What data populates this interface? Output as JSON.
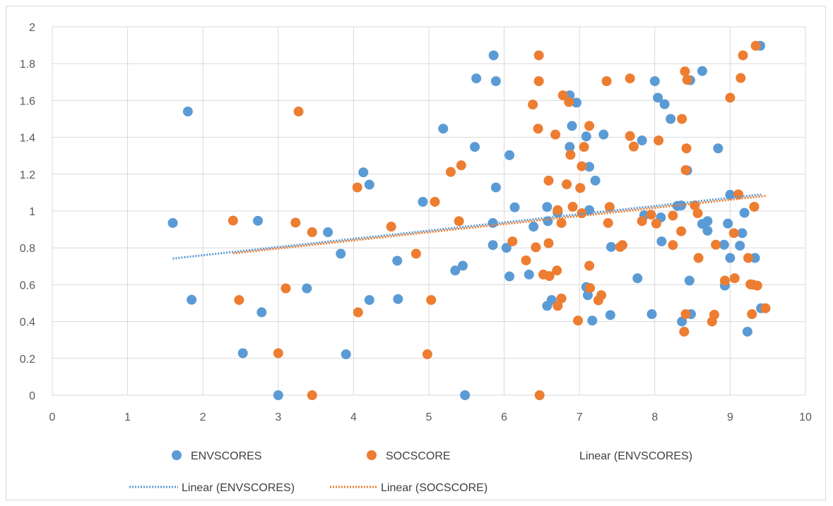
{
  "chart_data": {
    "type": "scatter",
    "title": "",
    "xlabel": "",
    "ylabel": "",
    "xlim": [
      0,
      10
    ],
    "ylim": [
      0,
      2
    ],
    "x_ticks": [
      "0",
      "1",
      "2",
      "3",
      "4",
      "5",
      "6",
      "7",
      "8",
      "9",
      "10"
    ],
    "y_ticks": [
      "0",
      "0.2",
      "0.4",
      "0.6",
      "0.8",
      "1",
      "1.2",
      "1.4",
      "1.6",
      "1.8",
      "2"
    ],
    "grid": true,
    "legend_position": "bottom",
    "series": [
      {
        "name": "ENVSCORES",
        "color": "#5b9bd5",
        "points": [
          [
            1.6,
            0.935
          ],
          [
            1.8,
            1.54
          ],
          [
            1.85,
            0.518
          ],
          [
            2.53,
            0.228
          ],
          [
            2.73,
            0.947
          ],
          [
            2.78,
            0.45
          ],
          [
            3.0,
            0.0
          ],
          [
            3.38,
            0.58
          ],
          [
            3.66,
            0.885
          ],
          [
            3.83,
            0.768
          ],
          [
            3.9,
            0.222
          ],
          [
            4.13,
            1.21
          ],
          [
            4.21,
            1.143
          ],
          [
            4.21,
            0.517
          ],
          [
            4.58,
            0.73
          ],
          [
            4.59,
            0.522
          ],
          [
            4.92,
            1.05
          ],
          [
            5.19,
            1.447
          ],
          [
            5.35,
            0.677
          ],
          [
            5.45,
            0.703
          ],
          [
            5.48,
            0.0
          ],
          [
            5.61,
            1.348
          ],
          [
            5.63,
            1.72
          ],
          [
            5.85,
            0.815
          ],
          [
            5.85,
            0.935
          ],
          [
            5.86,
            1.845
          ],
          [
            5.89,
            1.128
          ],
          [
            5.89,
            1.705
          ],
          [
            6.03,
            0.8
          ],
          [
            6.07,
            1.303
          ],
          [
            6.07,
            0.645
          ],
          [
            6.14,
            1.02
          ],
          [
            6.33,
            0.655
          ],
          [
            6.39,
            0.915
          ],
          [
            6.57,
            1.022
          ],
          [
            6.57,
            0.485
          ],
          [
            6.58,
            0.945
          ],
          [
            6.63,
            0.517
          ],
          [
            6.71,
            0.99
          ],
          [
            6.87,
            1.628
          ],
          [
            6.87,
            1.348
          ],
          [
            6.9,
            1.462
          ],
          [
            6.96,
            1.588
          ],
          [
            7.09,
            0.587
          ],
          [
            7.09,
            1.405
          ],
          [
            7.11,
            0.543
          ],
          [
            7.13,
            1.24
          ],
          [
            7.13,
            1.005
          ],
          [
            7.17,
            0.405
          ],
          [
            7.21,
            1.165
          ],
          [
            7.32,
            1.415
          ],
          [
            7.41,
            0.435
          ],
          [
            7.42,
            0.805
          ],
          [
            7.77,
            0.635
          ],
          [
            7.83,
            1.383
          ],
          [
            7.86,
            0.977
          ],
          [
            7.96,
            0.44
          ],
          [
            8.0,
            1.705
          ],
          [
            8.04,
            1.615
          ],
          [
            8.08,
            0.965
          ],
          [
            8.09,
            0.835
          ],
          [
            8.13,
            1.58
          ],
          [
            8.21,
            1.5
          ],
          [
            8.3,
            1.028
          ],
          [
            8.35,
            1.03
          ],
          [
            8.36,
            0.4
          ],
          [
            8.43,
            1.22
          ],
          [
            8.46,
            0.622
          ],
          [
            8.47,
            1.71
          ],
          [
            8.48,
            0.44
          ],
          [
            8.63,
            1.76
          ],
          [
            8.63,
            0.93
          ],
          [
            8.7,
            0.893
          ],
          [
            8.7,
            0.945
          ],
          [
            8.84,
            1.34
          ],
          [
            8.92,
            0.817
          ],
          [
            8.93,
            0.595
          ],
          [
            8.97,
            0.932
          ],
          [
            9.0,
            0.745
          ],
          [
            9.0,
            1.088
          ],
          [
            9.13,
            0.812
          ],
          [
            9.16,
            0.88
          ],
          [
            9.19,
            0.99
          ],
          [
            9.23,
            0.345
          ],
          [
            9.33,
            0.745
          ],
          [
            9.4,
            1.897
          ],
          [
            9.41,
            0.472
          ]
        ]
      },
      {
        "name": "SOCSCORE",
        "color": "#ed7d31",
        "points": [
          [
            2.4,
            0.948
          ],
          [
            2.48,
            0.517
          ],
          [
            3.0,
            0.228
          ],
          [
            3.1,
            0.58
          ],
          [
            3.23,
            0.937
          ],
          [
            3.27,
            1.54
          ],
          [
            3.45,
            0.885
          ],
          [
            3.45,
            0.0
          ],
          [
            4.05,
            1.128
          ],
          [
            4.06,
            0.45
          ],
          [
            4.5,
            0.915
          ],
          [
            4.83,
            0.768
          ],
          [
            4.98,
            0.222
          ],
          [
            5.03,
            0.517
          ],
          [
            5.08,
            1.05
          ],
          [
            5.29,
            1.212
          ],
          [
            5.4,
            0.945
          ],
          [
            5.43,
            1.248
          ],
          [
            6.11,
            0.835
          ],
          [
            6.29,
            0.732
          ],
          [
            6.38,
            1.578
          ],
          [
            6.42,
            0.803
          ],
          [
            6.45,
            1.447
          ],
          [
            6.46,
            1.845
          ],
          [
            6.46,
            1.705
          ],
          [
            6.47,
            0.0
          ],
          [
            6.52,
            0.655
          ],
          [
            6.59,
            1.165
          ],
          [
            6.59,
            0.825
          ],
          [
            6.6,
            0.647
          ],
          [
            6.68,
            1.415
          ],
          [
            6.7,
            0.677
          ],
          [
            6.71,
            1.005
          ],
          [
            6.71,
            0.485
          ],
          [
            6.76,
            0.525
          ],
          [
            6.76,
            0.935
          ],
          [
            6.78,
            1.628
          ],
          [
            6.83,
            1.145
          ],
          [
            6.86,
            1.592
          ],
          [
            6.88,
            1.305
          ],
          [
            6.91,
            1.023
          ],
          [
            6.98,
            0.405
          ],
          [
            7.01,
            1.125
          ],
          [
            7.03,
            1.243
          ],
          [
            7.03,
            0.988
          ],
          [
            7.06,
            1.348
          ],
          [
            7.13,
            0.703
          ],
          [
            7.13,
            1.462
          ],
          [
            7.14,
            0.582
          ],
          [
            7.25,
            0.515
          ],
          [
            7.29,
            0.543
          ],
          [
            7.36,
            1.705
          ],
          [
            7.38,
            0.935
          ],
          [
            7.4,
            1.022
          ],
          [
            7.54,
            0.805
          ],
          [
            7.57,
            0.815
          ],
          [
            7.67,
            1.407
          ],
          [
            7.67,
            1.72
          ],
          [
            7.72,
            1.35
          ],
          [
            7.83,
            0.945
          ],
          [
            7.95,
            0.98
          ],
          [
            8.02,
            0.932
          ],
          [
            8.05,
            1.383
          ],
          [
            8.24,
            0.815
          ],
          [
            8.24,
            0.975
          ],
          [
            8.35,
            0.89
          ],
          [
            8.36,
            1.5
          ],
          [
            8.39,
            0.345
          ],
          [
            8.4,
            1.758
          ],
          [
            8.41,
            1.222
          ],
          [
            8.41,
            0.44
          ],
          [
            8.42,
            1.34
          ],
          [
            8.43,
            1.712
          ],
          [
            8.53,
            1.03
          ],
          [
            8.57,
            0.988
          ],
          [
            8.58,
            0.745
          ],
          [
            8.76,
            0.4
          ],
          [
            8.79,
            0.437
          ],
          [
            8.81,
            0.817
          ],
          [
            8.93,
            0.622
          ],
          [
            9.0,
            1.615
          ],
          [
            9.05,
            0.88
          ],
          [
            9.06,
            0.635
          ],
          [
            9.11,
            1.09
          ],
          [
            9.14,
            1.722
          ],
          [
            9.17,
            1.845
          ],
          [
            9.24,
            0.745
          ],
          [
            9.27,
            0.602
          ],
          [
            9.29,
            0.44
          ],
          [
            9.3,
            0.6
          ],
          [
            9.32,
            1.023
          ],
          [
            9.34,
            1.897
          ],
          [
            9.36,
            0.595
          ],
          [
            9.47,
            0.472
          ]
        ]
      }
    ],
    "trendlines": [
      {
        "name": "Linear (ENVSCORES)",
        "color": "#5b9bd5",
        "x": [
          1.6,
          9.41
        ],
        "y": [
          0.742,
          1.09
        ]
      },
      {
        "name": "Linear (SOCSCORE)",
        "color": "#ed7d31",
        "x": [
          2.4,
          9.47
        ],
        "y": [
          0.77,
          1.082
        ]
      }
    ],
    "legend": {
      "row1": [
        {
          "label": "ENVSCORES",
          "marker": "circle",
          "color": "#5b9bd5"
        },
        {
          "label": "SOCSCORE",
          "marker": "circle",
          "color": "#ed7d31"
        },
        {
          "label": "Linear (ENVSCORES)",
          "marker": "none",
          "color": "#5b9bd5"
        }
      ],
      "row2": [
        {
          "label": "Linear (ENVSCORES)",
          "marker": "dotted-line",
          "color": "#5b9bd5"
        },
        {
          "label": "Linear (SOCSCORE)",
          "marker": "dotted-line",
          "color": "#ed7d31"
        }
      ]
    }
  }
}
